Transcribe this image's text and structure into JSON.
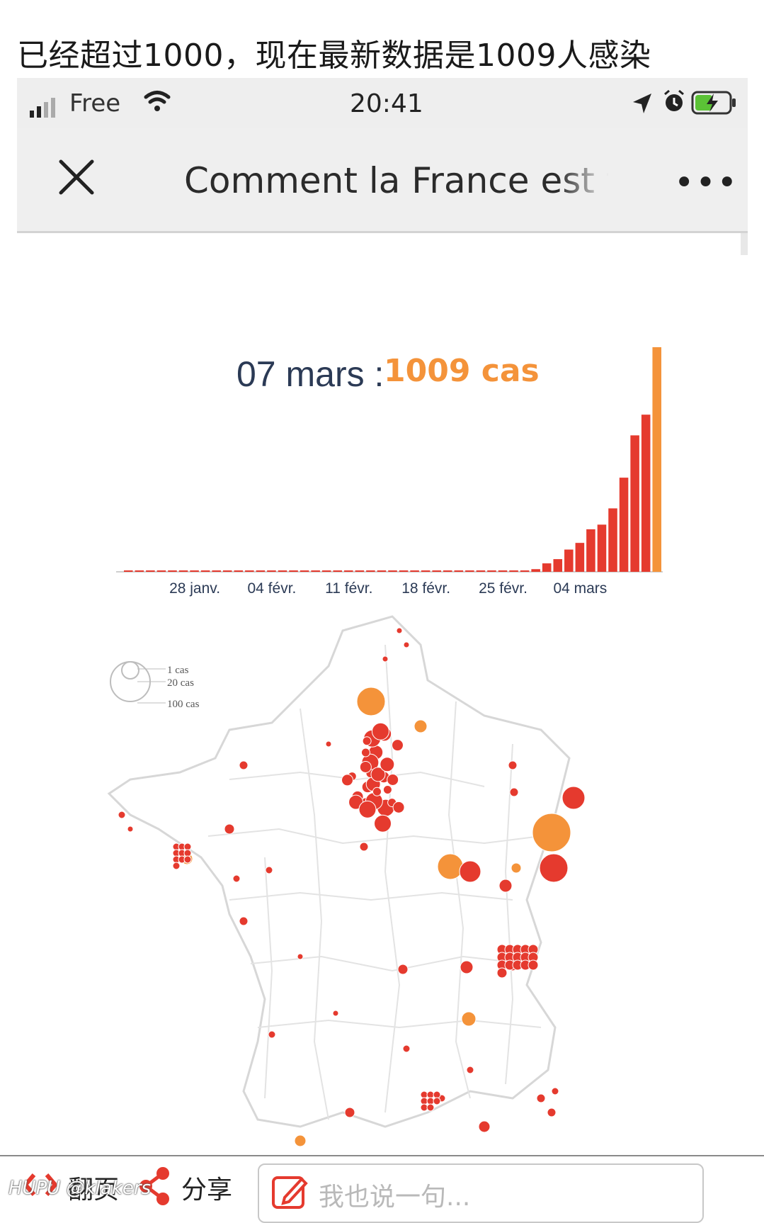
{
  "caption": "已经超过1000，现在最新数据是1009人感染",
  "status_bar": {
    "carrier": "Free",
    "time": "20:41",
    "icons": [
      "signal-icon",
      "wifi-icon",
      "location-arrow-icon",
      "alarm-icon",
      "battery-charging-icon"
    ]
  },
  "nav": {
    "close_icon": "close-icon",
    "title": "Comment la France est tou",
    "more_icon": "more-icon"
  },
  "chart_data": {
    "type": "bar",
    "annotation_label": "07 mars :",
    "annotation_value": "1009 cas",
    "x_ticks": [
      "28 janv.",
      "04 févr.",
      "11 févr.",
      "18 févr.",
      "25 févr.",
      "04 mars"
    ],
    "values": [
      2,
      2,
      2,
      2,
      2,
      2,
      2,
      2,
      2,
      2,
      2,
      2,
      2,
      2,
      2,
      2,
      2,
      2,
      5,
      5,
      5,
      5,
      5,
      5,
      5,
      5,
      5,
      5,
      5,
      5,
      5,
      5,
      5,
      5,
      5,
      5,
      5,
      12,
      38,
      57,
      100,
      130,
      191,
      212,
      285,
      423,
      613,
      706,
      1009
    ],
    "ylim": [
      0,
      1009
    ],
    "colors": {
      "bars": "#e53a2e",
      "highlight": "#f4933a",
      "label": "#2b3a55"
    }
  },
  "map": {
    "legend": [
      "1 cas",
      "20 cas",
      "100 cas"
    ],
    "colors": {
      "red": "#e53a2e",
      "orange": "#f4933a",
      "borders": "#d7d7d7"
    }
  },
  "footer": {
    "flip_label": "翻页",
    "share_label": "分享",
    "comment_placeholder": "我也说一句...",
    "watermark": "HUPU @klakers"
  }
}
